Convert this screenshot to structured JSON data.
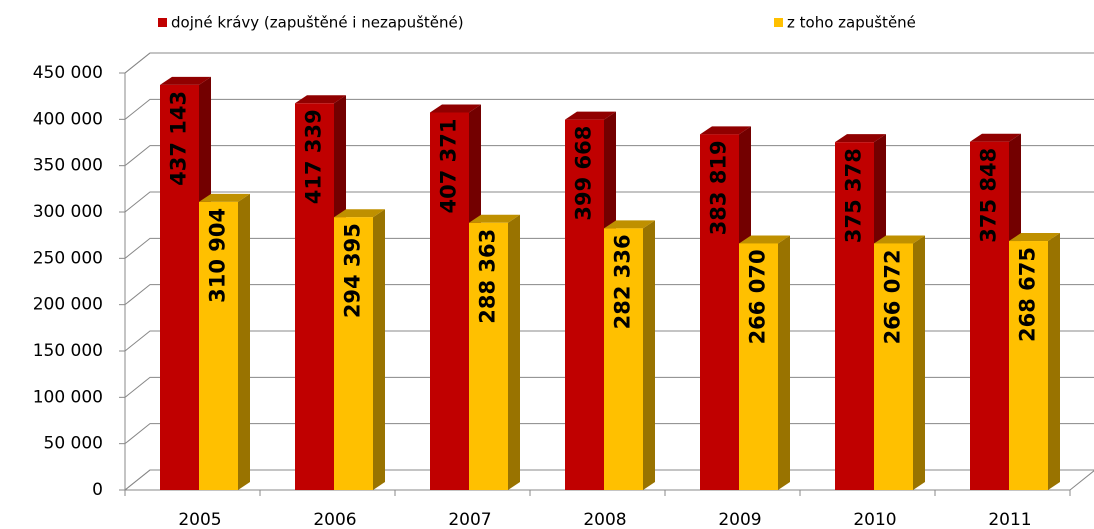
{
  "chart_data": {
    "type": "bar",
    "categories": [
      "2005",
      "2006",
      "2007",
      "2008",
      "2009",
      "2010",
      "2011"
    ],
    "series": [
      {
        "name": "dojné krávy (zapuštěné i nezapuštěné)",
        "color": "#c00000",
        "values": [
          437143,
          417339,
          407371,
          399668,
          383819,
          375378,
          375848
        ],
        "value_labels": [
          "437 143",
          "417 339",
          "407 371",
          "399 668",
          "383 819",
          "375 378",
          "375 848"
        ]
      },
      {
        "name": "z toho zapuštěné",
        "color": "#ffc000",
        "values": [
          310904,
          294395,
          288363,
          282336,
          266070,
          266072,
          268675
        ],
        "value_labels": [
          "310 904",
          "294 395",
          "288 363",
          "282 336",
          "266 070",
          "266 072",
          "268 675"
        ]
      }
    ],
    "ylim": [
      0,
      450000
    ],
    "yticks": [
      {
        "value": 0,
        "label": "0"
      },
      {
        "value": 50000,
        "label": "50 000"
      },
      {
        "value": 100000,
        "label": "100 000"
      },
      {
        "value": 150000,
        "label": "150 000"
      },
      {
        "value": 200000,
        "label": "200 000"
      },
      {
        "value": 250000,
        "label": "250 000"
      },
      {
        "value": 300000,
        "label": "300 000"
      },
      {
        "value": 350000,
        "label": "350 000"
      },
      {
        "value": 400000,
        "label": "400 000"
      },
      {
        "value": 450000,
        "label": "450 000"
      }
    ],
    "grid": true
  }
}
